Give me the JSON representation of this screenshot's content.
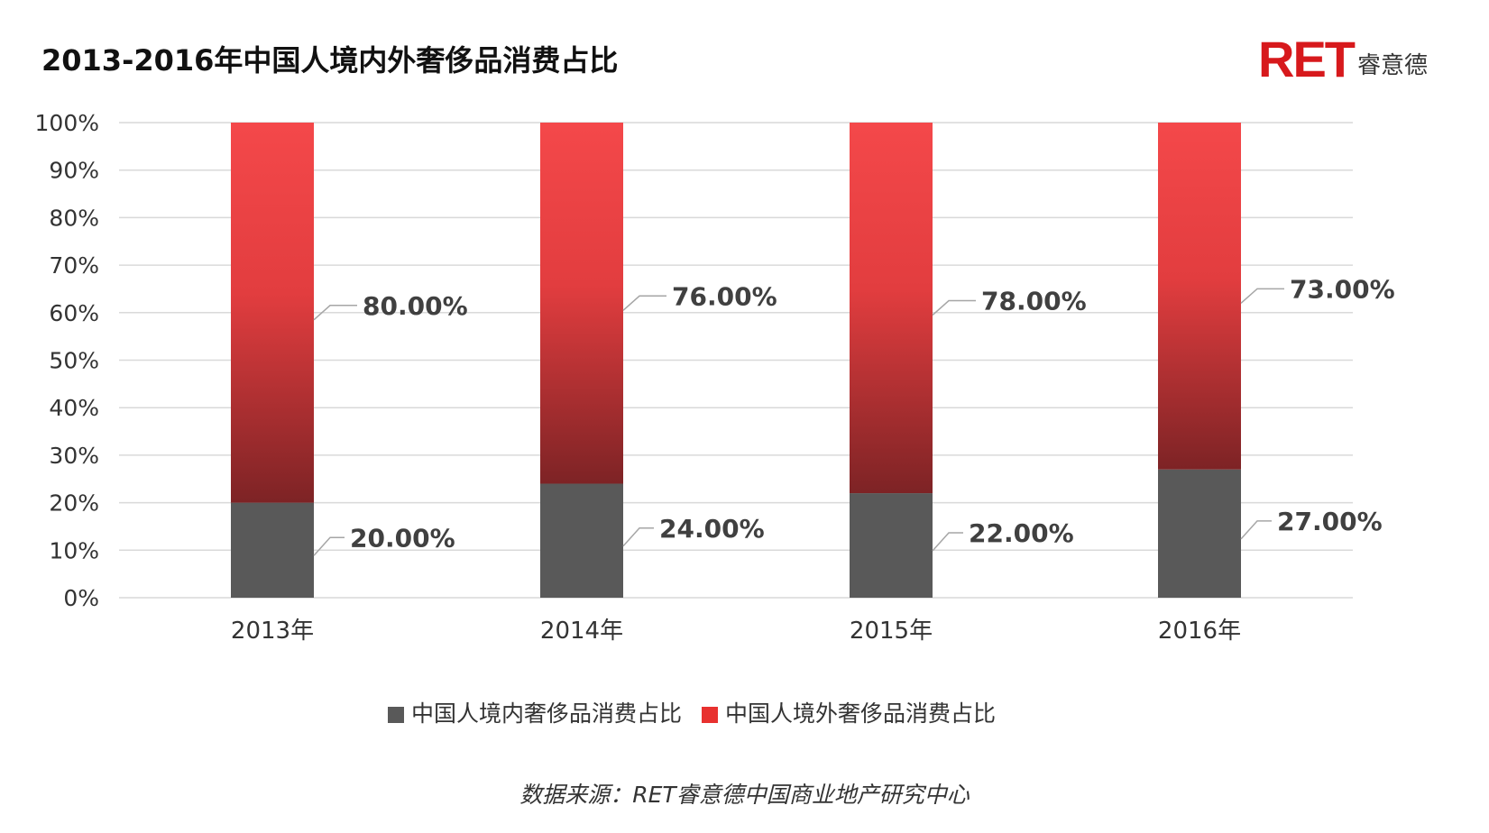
{
  "title": "2013-2016年中国人境内外奢侈品消费占比",
  "logo": {
    "mark": "RET",
    "cn": "睿意德"
  },
  "source": "数据来源：RET睿意德中国商业地产研究中心",
  "colors": {
    "domestic": "#595959",
    "overseas_top": "#f4484a",
    "overseas_bottom": "#7d2325",
    "grid": "#d9d9d9",
    "legend_overseas": "#e8312f"
  },
  "chart_data": {
    "type": "bar",
    "stacked": true,
    "categories": [
      "2013年",
      "2014年",
      "2015年",
      "2016年"
    ],
    "series": [
      {
        "name": "中国人境内奢侈品消费占比",
        "values": [
          20,
          24,
          22,
          27
        ],
        "labels": [
          "20.00%",
          "24.00%",
          "22.00%",
          "27.00%"
        ]
      },
      {
        "name": "中国人境外奢侈品消费占比",
        "values": [
          80,
          76,
          78,
          73
        ],
        "labels": [
          "80.00%",
          "76.00%",
          "78.00%",
          "73.00%"
        ]
      }
    ],
    "ylim": [
      0,
      100
    ],
    "yticks": [
      "0%",
      "10%",
      "20%",
      "30%",
      "40%",
      "50%",
      "60%",
      "70%",
      "80%",
      "90%",
      "100%"
    ],
    "grid": true,
    "legend_position": "bottom"
  }
}
